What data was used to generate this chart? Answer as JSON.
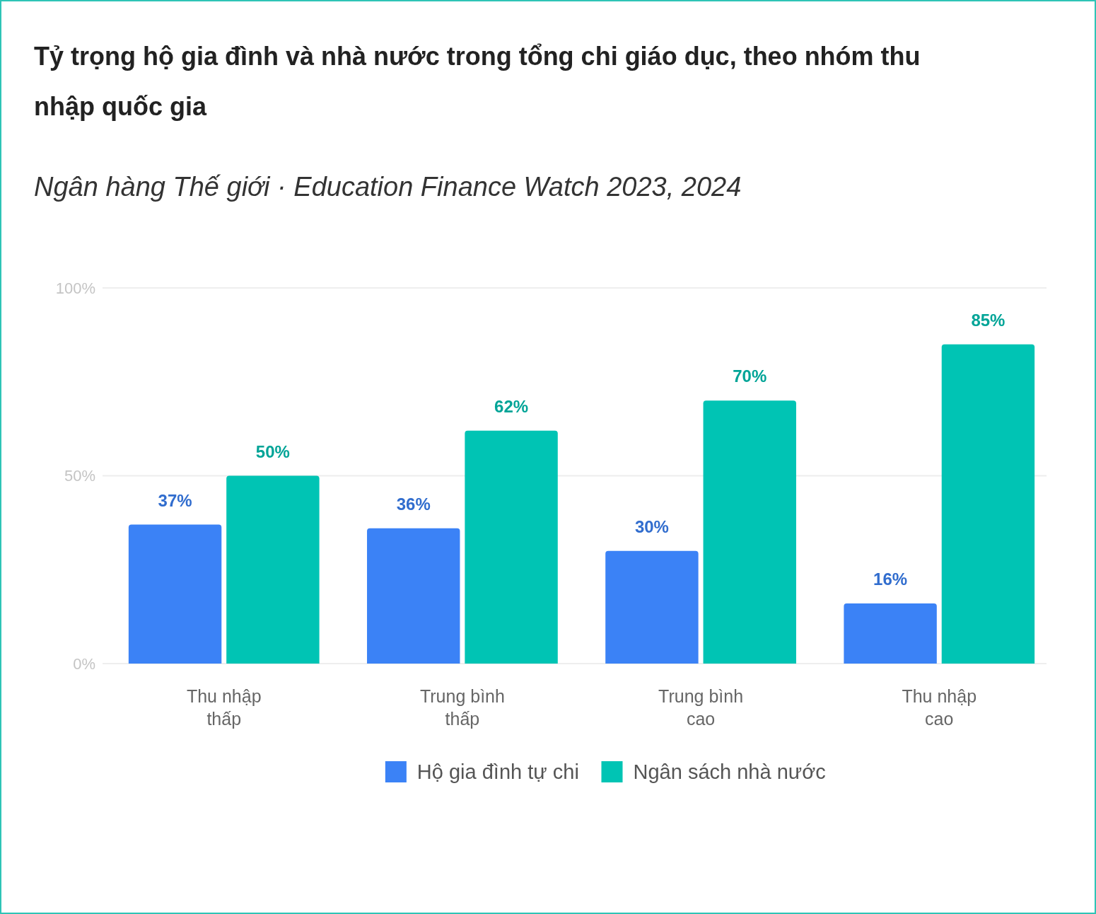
{
  "chart_data": {
    "type": "bar",
    "title": "Tỷ trọng hộ gia đình và nhà nước trong tổng chi giáo dục, theo nhóm thu nhập quốc gia",
    "subtitle": "Ngân hàng Thế giới · Education Finance Watch 2023, 2024",
    "categories": [
      "Thu nhập thấp",
      "Trung bình thấp",
      "Trung bình cao",
      "Thu nhập cao"
    ],
    "series": [
      {
        "name": "Hộ gia đình tự chi",
        "color": "#3b82f6",
        "values": [
          37,
          36,
          30,
          16
        ],
        "value_labels": [
          "37%",
          "36%",
          "30%",
          "16%"
        ]
      },
      {
        "name": "Ngân sách nhà nước",
        "color": "#00c4b4",
        "values": [
          50,
          62,
          70,
          85
        ],
        "value_labels": [
          "50%",
          "62%",
          "70%",
          "85%"
        ]
      }
    ],
    "ylim": [
      0,
      100
    ],
    "yticks": [
      {
        "value": 0,
        "label": "0%"
      },
      {
        "value": 50,
        "label": "50%"
      },
      {
        "value": 100,
        "label": "100%"
      }
    ],
    "grid": "y",
    "legend": "bottom"
  }
}
